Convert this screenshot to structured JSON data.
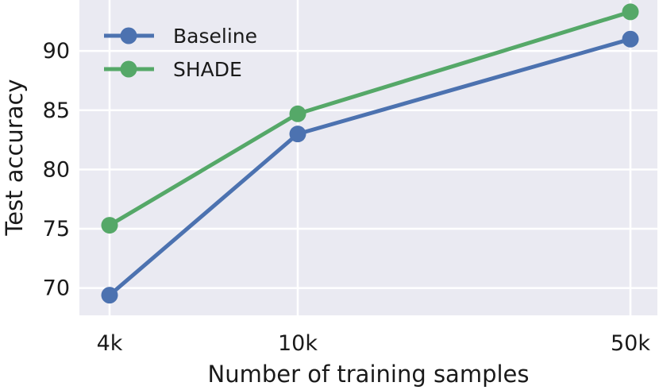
{
  "chart_data": {
    "type": "line",
    "title": "",
    "xlabel": "Number of training samples",
    "ylabel": "Test accuracy",
    "categories": [
      "4k",
      "10k",
      "50k"
    ],
    "x_scale": "log",
    "x": [
      4000,
      10000,
      50000
    ],
    "ylim": [
      67.7,
      94.3
    ],
    "yticks": [
      70,
      75,
      80,
      85,
      90
    ],
    "grid": true,
    "legend_position": "top-left",
    "background": "#eaeaf2",
    "series": [
      {
        "name": "Baseline",
        "color": "#4c72b0",
        "values": [
          69.4,
          83.0,
          91.0
        ]
      },
      {
        "name": "SHADE",
        "color": "#55a868",
        "values": [
          75.3,
          84.7,
          93.3
        ]
      }
    ]
  }
}
